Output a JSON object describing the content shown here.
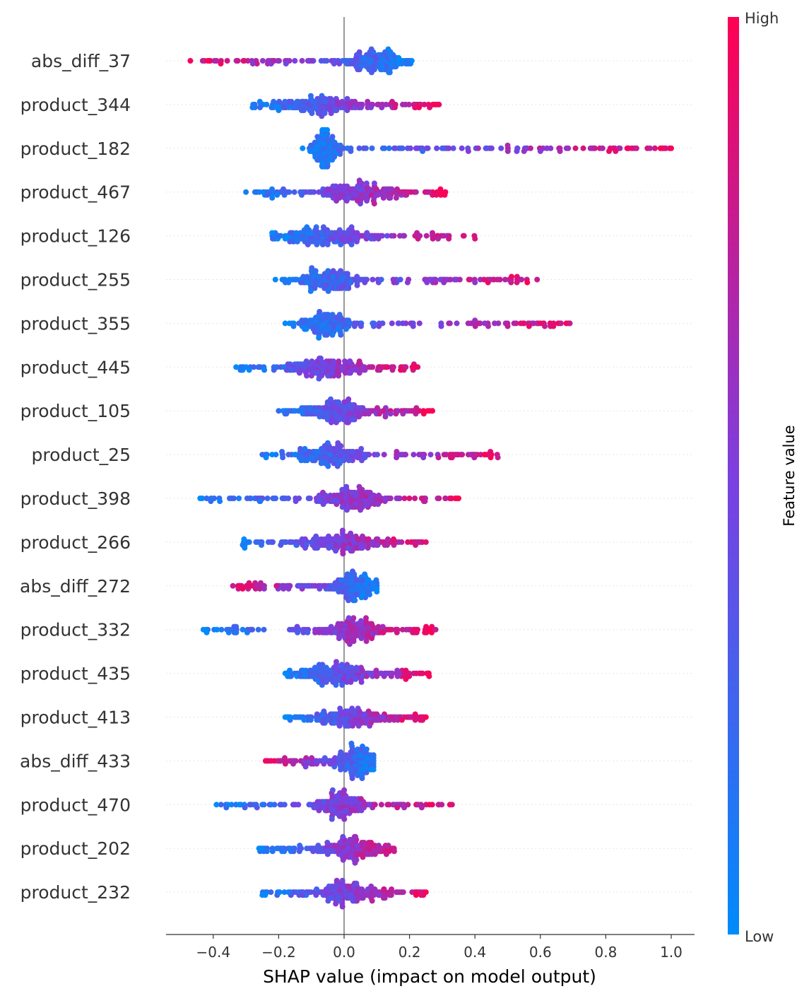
{
  "chart_data": {
    "type": "scatter",
    "subtype": "shap-beeswarm",
    "xlabel": "SHAP value (impact on model output)",
    "xlim": [
      -0.55,
      1.08
    ],
    "xticks": [
      -0.4,
      -0.2,
      0.0,
      0.2,
      0.4,
      0.6,
      0.8,
      1.0
    ],
    "xtick_labels": [
      "−0.4",
      "−0.2",
      "0.0",
      "0.2",
      "0.4",
      "0.6",
      "0.8",
      "1.0"
    ],
    "colorbar": {
      "title": "Feature value",
      "high_label": "High",
      "low_label": "Low",
      "high_color": "#ff0052",
      "low_color": "#008bfb"
    },
    "zero_line_color": "#999999",
    "features": [
      {
        "name": "abs_diff_37",
        "min": -0.47,
        "max": 0.22,
        "center": 0.1,
        "spread": 0.06,
        "high_side": "left",
        "outliers": [
          -0.47,
          -0.39
        ]
      },
      {
        "name": "product_344",
        "min": -0.28,
        "max": 0.29,
        "center": -0.06,
        "spread": 0.09,
        "high_side": "right",
        "outliers": [
          -0.28,
          0.29
        ]
      },
      {
        "name": "product_182",
        "min": -0.13,
        "max": 1.0,
        "center": -0.06,
        "spread": 0.03,
        "high_side": "right",
        "outliers": [
          0.06,
          0.24,
          0.3,
          0.32,
          0.36,
          0.38,
          0.41,
          0.48,
          0.5,
          0.53,
          0.55,
          0.57,
          0.6,
          0.62,
          0.66,
          0.68,
          0.79,
          0.81,
          0.83,
          0.88,
          1.0
        ]
      },
      {
        "name": "product_467",
        "min": -0.3,
        "max": 0.31,
        "center": 0.05,
        "spread": 0.09,
        "high_side": "right",
        "outliers": [
          -0.3,
          0.26,
          0.31
        ]
      },
      {
        "name": "product_126",
        "min": -0.22,
        "max": 0.4,
        "center": -0.06,
        "spread": 0.08,
        "high_side": "right",
        "outliers": [
          -0.22,
          0.27,
          0.32,
          0.4
        ]
      },
      {
        "name": "product_255",
        "min": -0.21,
        "max": 0.59,
        "center": -0.04,
        "spread": 0.06,
        "high_side": "right",
        "outliers": [
          -0.21,
          -0.17,
          0.4,
          0.44,
          0.56,
          0.59
        ]
      },
      {
        "name": "product_355",
        "min": -0.18,
        "max": 0.69,
        "center": -0.05,
        "spread": 0.05,
        "high_side": "right",
        "outliers": [
          -0.18,
          0.4,
          0.43,
          0.46,
          0.5,
          0.54,
          0.6,
          0.69
        ]
      },
      {
        "name": "product_445",
        "min": -0.33,
        "max": 0.23,
        "center": -0.04,
        "spread": 0.08,
        "high_side": "right",
        "outliers": [
          -0.33,
          -0.31,
          -0.29
        ]
      },
      {
        "name": "product_105",
        "min": -0.2,
        "max": 0.27,
        "center": -0.03,
        "spread": 0.07,
        "high_side": "right",
        "outliers": [
          -0.2,
          0.23,
          0.27
        ]
      },
      {
        "name": "product_25",
        "min": -0.25,
        "max": 0.47,
        "center": -0.03,
        "spread": 0.07,
        "high_side": "right",
        "outliers": [
          -0.25,
          0.33,
          0.35,
          0.38,
          0.4,
          0.43,
          0.47
        ]
      },
      {
        "name": "product_398",
        "min": -0.44,
        "max": 0.35,
        "center": 0.03,
        "spread": 0.06,
        "high_side": "right",
        "outliers": [
          -0.44,
          -0.42,
          -0.38,
          -0.35,
          0.31,
          0.35
        ]
      },
      {
        "name": "product_266",
        "min": -0.31,
        "max": 0.25,
        "center": 0.0,
        "spread": 0.08,
        "high_side": "right",
        "outliers": [
          -0.31,
          0.23,
          0.25
        ]
      },
      {
        "name": "abs_diff_272",
        "min": -0.34,
        "max": 0.1,
        "center": 0.04,
        "spread": 0.04,
        "high_side": "left",
        "outliers": [
          -0.34,
          -0.32,
          -0.29
        ]
      },
      {
        "name": "product_332",
        "min": -0.43,
        "max": 0.28,
        "center": 0.03,
        "spread": 0.06,
        "high_side": "right",
        "outliers": [
          -0.43,
          -0.42,
          -0.35,
          -0.33,
          -0.31,
          0.19,
          0.21,
          0.28
        ]
      },
      {
        "name": "product_435",
        "min": -0.18,
        "max": 0.26,
        "center": -0.03,
        "spread": 0.07,
        "high_side": "right",
        "outliers": [
          -0.18,
          0.24,
          0.26
        ]
      },
      {
        "name": "product_413",
        "min": -0.18,
        "max": 0.25,
        "center": 0.02,
        "spread": 0.06,
        "high_side": "right",
        "outliers": [
          -0.18,
          0.2,
          0.24,
          0.25
        ]
      },
      {
        "name": "abs_diff_433",
        "min": -0.24,
        "max": 0.09,
        "center": 0.04,
        "spread": 0.04,
        "high_side": "left",
        "outliers": [
          -0.24
        ]
      },
      {
        "name": "product_470",
        "min": -0.39,
        "max": 0.33,
        "center": 0.0,
        "spread": 0.06,
        "high_side": "right",
        "outliers": [
          -0.39,
          -0.36,
          -0.33,
          -0.32,
          0.29,
          0.33
        ]
      },
      {
        "name": "product_202",
        "min": -0.26,
        "max": 0.18,
        "center": 0.03,
        "spread": 0.06,
        "high_side": "right",
        "outliers": [
          -0.26
        ]
      },
      {
        "name": "product_232",
        "min": -0.25,
        "max": 0.25,
        "center": 0.0,
        "spread": 0.07,
        "high_side": "right",
        "outliers": [
          -0.25,
          -0.17,
          0.22,
          0.25
        ]
      }
    ]
  }
}
